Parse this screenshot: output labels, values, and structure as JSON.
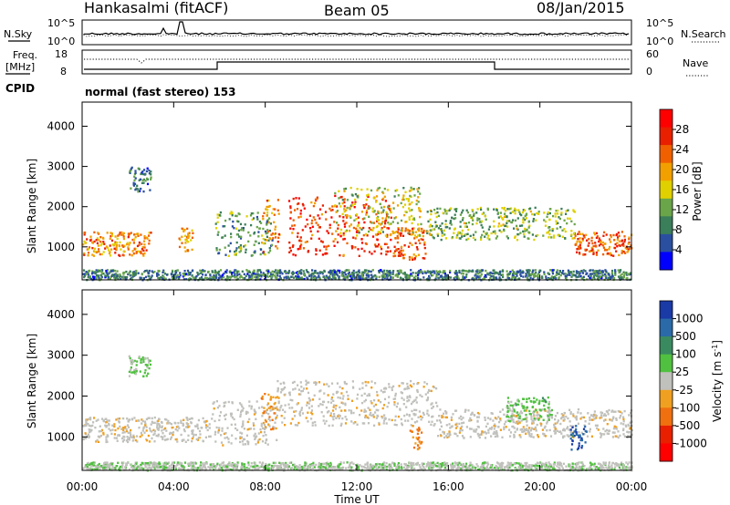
{
  "header": {
    "station": "Hankasalmi (fitACF)",
    "beam": "Beam 05",
    "date": "08/Jan/2015"
  },
  "noise_panel": {
    "left_label": "N.Sky",
    "right_label": "N.Search",
    "left_ticks": [
      "10^5",
      "10^0"
    ],
    "right_ticks": [
      "10^5",
      "10^0"
    ]
  },
  "freq_panel": {
    "left_label_top": "Freq.",
    "left_label_bottom": "[MHz]",
    "left_ticks": [
      "18",
      "8"
    ],
    "right_label": "Nave",
    "right_ticks": [
      "60",
      "0"
    ]
  },
  "cpid_panel": {
    "label": "CPID",
    "value": "normal (fast stereo) 153"
  },
  "colors": {
    "power": [
      "#0000ff",
      "#2a4fa0",
      "#3b7e5a",
      "#6aa54a",
      "#e0d000",
      "#f2a000",
      "#f06000",
      "#e82000",
      "#ff0000"
    ],
    "velocity": [
      "#1a3aa6",
      "#2a6aa8",
      "#3a8a60",
      "#50c040",
      "#c0c0bc",
      "#f0a020",
      "#f07010",
      "#e82000",
      "#ff0000"
    ],
    "ground_scatter": "#c0c0bc"
  },
  "chart_data": [
    {
      "type": "heatmap",
      "title": "",
      "xlabel": "",
      "ylabel": "Slant Range [km]",
      "xlim": [
        0,
        24
      ],
      "ylim": [
        180,
        4600
      ],
      "x_ticks": [
        "00:00",
        "04:00",
        "08:00",
        "12:00",
        "16:00",
        "20:00",
        "00:00"
      ],
      "y_ticks": [
        "1000",
        "2000",
        "3000",
        "4000"
      ],
      "colorbar": {
        "label": "Power [dB]",
        "ticks": [
          "4",
          "8",
          "12",
          "16",
          "20",
          "24",
          "28"
        ],
        "range": [
          0,
          30
        ]
      },
      "regions": [
        {
          "t0": 0.0,
          "t1": 3.0,
          "r0": 800,
          "r1": 1400,
          "level": 20
        },
        {
          "t0": 4.2,
          "t1": 4.8,
          "r0": 900,
          "r1": 1500,
          "level": 18
        },
        {
          "t0": 5.8,
          "t1": 8.3,
          "r0": 800,
          "r1": 1900,
          "level": 10
        },
        {
          "t0": 7.8,
          "t1": 8.6,
          "r0": 900,
          "r1": 2200,
          "level": 20
        },
        {
          "t0": 9.0,
          "t1": 13.5,
          "r0": 800,
          "r1": 2300,
          "level": 24
        },
        {
          "t0": 11.0,
          "t1": 14.8,
          "r0": 1300,
          "r1": 2500,
          "level": 14
        },
        {
          "t0": 13.5,
          "t1": 15.0,
          "r0": 700,
          "r1": 1500,
          "level": 22
        },
        {
          "t0": 15.0,
          "t1": 21.5,
          "r0": 1200,
          "r1": 2000,
          "level": 12
        },
        {
          "t0": 21.5,
          "t1": 24.0,
          "r0": 800,
          "r1": 1400,
          "level": 22
        },
        {
          "t0": 2.0,
          "t1": 3.0,
          "r0": 2400,
          "r1": 3000,
          "level": 8
        },
        {
          "t0": 0.0,
          "t1": 24.0,
          "r0": 200,
          "r1": 450,
          "level": 8
        }
      ]
    },
    {
      "type": "heatmap",
      "title": "",
      "xlabel": "Time UT",
      "ylabel": "Slant Range [km]",
      "xlim": [
        0,
        24
      ],
      "ylim": [
        180,
        4600
      ],
      "x_ticks": [
        "00:00",
        "04:00",
        "08:00",
        "12:00",
        "16:00",
        "20:00",
        "00:00"
      ],
      "y_ticks": [
        "1000",
        "2000",
        "3000",
        "4000"
      ],
      "colorbar": {
        "label": "Velocity [m s^-1]",
        "ticks": [
          "1000",
          "500",
          "100",
          "25",
          "-25",
          "-100",
          "-500",
          "-1000"
        ],
        "range": [
          -1000,
          1000
        ]
      },
      "regions": [
        {
          "t0": 0.0,
          "t1": 5.5,
          "r0": 900,
          "r1": 1500,
          "velocity": 0,
          "ground_scatter": true
        },
        {
          "t0": 5.5,
          "t1": 8.5,
          "r0": 800,
          "r1": 1900,
          "velocity": 0,
          "ground_scatter": true
        },
        {
          "t0": 8.5,
          "t1": 15.5,
          "r0": 1300,
          "r1": 2400,
          "velocity": 0,
          "ground_scatter": true
        },
        {
          "t0": 15.5,
          "t1": 24.0,
          "r0": 1000,
          "r1": 1700,
          "velocity": 0,
          "ground_scatter": true
        },
        {
          "t0": 7.8,
          "t1": 8.5,
          "r0": 1200,
          "r1": 2100,
          "velocity": -300
        },
        {
          "t0": 14.3,
          "t1": 14.8,
          "r0": 700,
          "r1": 1300,
          "velocity": -400
        },
        {
          "t0": 18.5,
          "t1": 20.5,
          "r0": 1400,
          "r1": 2000,
          "velocity": 200
        },
        {
          "t0": 21.3,
          "t1": 22.0,
          "r0": 700,
          "r1": 1300,
          "velocity": 700
        },
        {
          "t0": 2.0,
          "t1": 3.0,
          "r0": 2500,
          "r1": 3000,
          "velocity": 150
        },
        {
          "t0": 0.0,
          "t1": 24.0,
          "r0": 200,
          "r1": 400,
          "velocity": 60
        }
      ]
    }
  ]
}
